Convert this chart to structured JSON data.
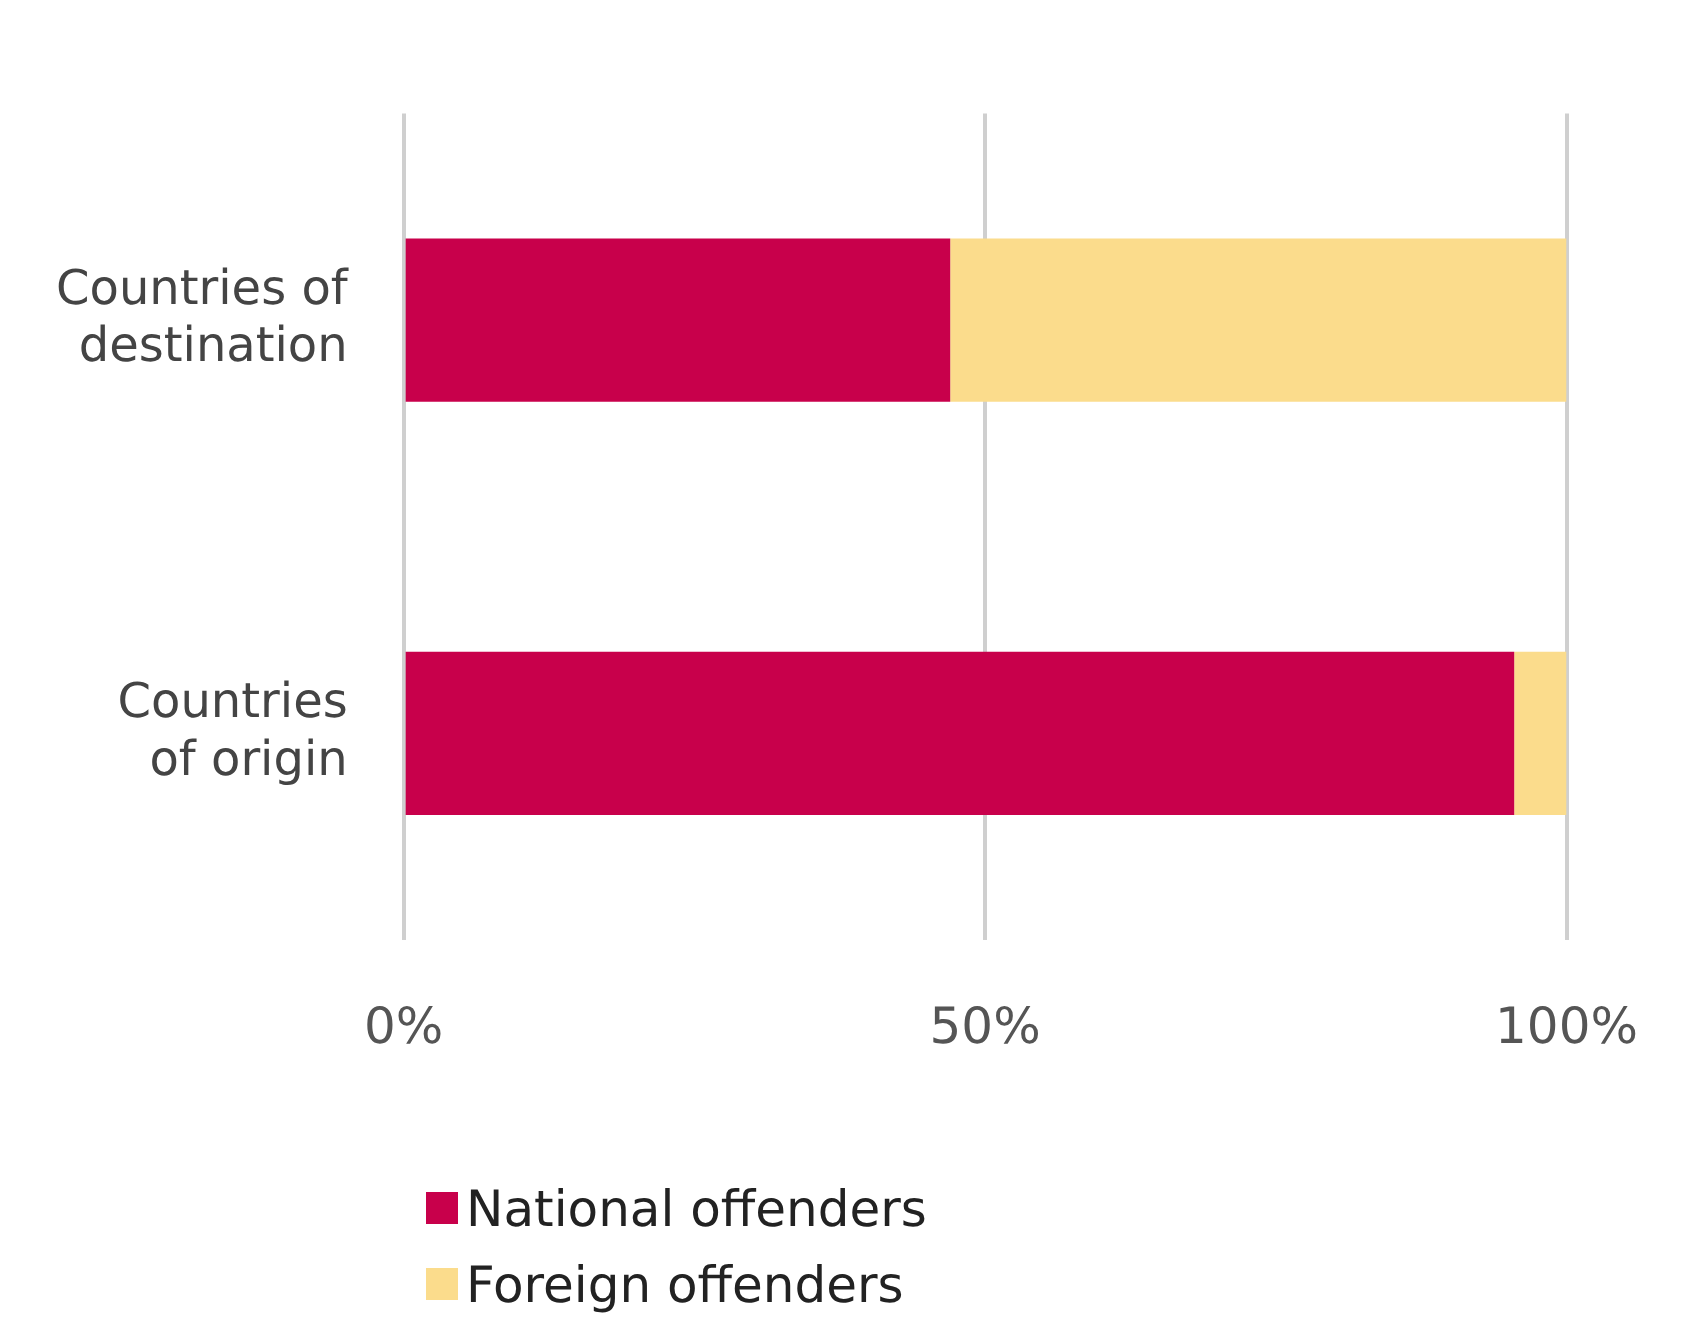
{
  "chart_data": {
    "type": "bar",
    "orientation": "horizontal",
    "stacked": true,
    "categories": [
      "Countries of destination",
      "Countries of origin"
    ],
    "series": [
      {
        "name": "National offenders",
        "color": "#c8004b",
        "values": [
          47,
          95.5
        ]
      },
      {
        "name": "Foreign offenders",
        "color": "#fbdc8c",
        "values": [
          53,
          4.5
        ]
      }
    ],
    "xlim": [
      0,
      100
    ],
    "xticks": [
      {
        "value": 0,
        "label": "0%"
      },
      {
        "value": 50,
        "label": "50%"
      },
      {
        "value": 100,
        "label": "100%"
      }
    ],
    "grid": "x",
    "legend": "bottom"
  }
}
